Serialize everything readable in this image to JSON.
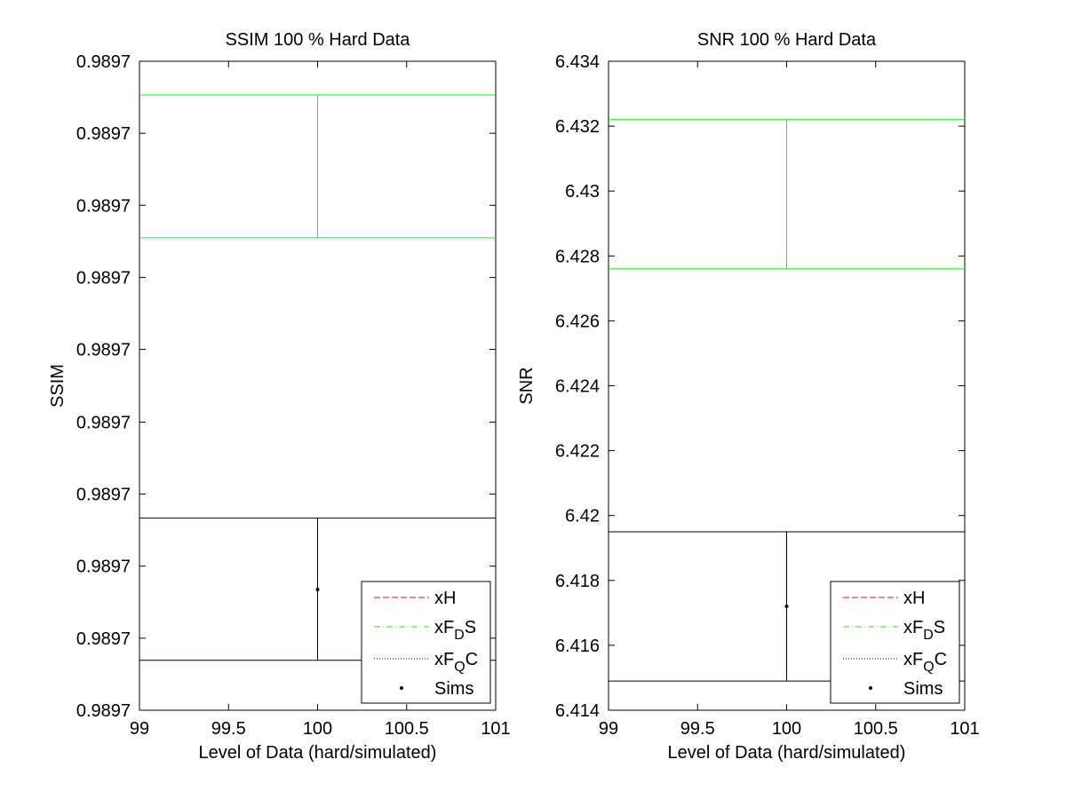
{
  "chart_data": [
    {
      "type": "errorbar",
      "title": "SSIM 100 % Hard Data",
      "xlabel": "Level of Data (hard/simulated)",
      "ylabel": "SSIM",
      "xlim": [
        99,
        101
      ],
      "xticks": [
        99,
        99.5,
        100,
        100.5,
        101
      ],
      "xtick_labels": [
        "99",
        "99.5",
        "100",
        "100.5",
        "101"
      ],
      "ylim": [
        0,
        1
      ],
      "yticks": [
        0,
        0.111,
        0.222,
        0.333,
        0.444,
        0.556,
        0.667,
        0.778,
        0.889,
        1
      ],
      "ytick_labels": [
        "0.9897",
        "0.9897",
        "0.9897",
        "0.9897",
        "0.9897",
        "0.9897",
        "0.9897",
        "0.9897",
        "0.9897",
        "0.9897"
      ],
      "grid": false,
      "legend": {
        "placement": "bottom-right",
        "entries": [
          {
            "label": "xH",
            "sub": "",
            "suffix": "",
            "style": "dashed",
            "color": "#ff0000"
          },
          {
            "label": "xF",
            "sub": "D",
            "suffix": "S",
            "style": "dashdot",
            "color": "#00ff00"
          },
          {
            "label": "xF",
            "sub": "Q",
            "suffix": "C",
            "style": "dotted",
            "color": "#000000"
          },
          {
            "label": "Sims",
            "sub": "",
            "suffix": "",
            "style": "point",
            "color": "#000000"
          }
        ]
      },
      "series": [
        {
          "name": "xF_DS",
          "color": "#00ff00",
          "x": 100,
          "low": 0.728,
          "high": 0.948
        },
        {
          "name": "xF_QC",
          "color": "#000000",
          "x": 100,
          "low": 0.077,
          "high": 0.296
        },
        {
          "name": "Sims",
          "color": "#000000",
          "x": 100,
          "y": 0.186
        }
      ]
    },
    {
      "type": "errorbar",
      "title": "SNR 100 % Hard Data",
      "xlabel": "Level of Data (hard/simulated)",
      "ylabel": "SNR",
      "xlim": [
        99,
        101
      ],
      "xticks": [
        99,
        99.5,
        100,
        100.5,
        101
      ],
      "xtick_labels": [
        "99",
        "99.5",
        "100",
        "100.5",
        "101"
      ],
      "ylim": [
        6.414,
        6.434
      ],
      "yticks": [
        6.414,
        6.416,
        6.418,
        6.42,
        6.422,
        6.424,
        6.426,
        6.428,
        6.43,
        6.432,
        6.434
      ],
      "ytick_labels": [
        "6.414",
        "6.416",
        "6.418",
        "6.42",
        "6.422",
        "6.424",
        "6.426",
        "6.428",
        "6.43",
        "6.432",
        "6.434"
      ],
      "grid": false,
      "legend": {
        "placement": "bottom-right",
        "entries": [
          {
            "label": "xH",
            "sub": "",
            "suffix": "",
            "style": "dashed",
            "color": "#ff0000"
          },
          {
            "label": "xF",
            "sub": "D",
            "suffix": "S",
            "style": "dashdot",
            "color": "#00ff00"
          },
          {
            "label": "xF",
            "sub": "Q",
            "suffix": "C",
            "style": "dotted",
            "color": "#000000"
          },
          {
            "label": "Sims",
            "sub": "",
            "suffix": "",
            "style": "point",
            "color": "#000000"
          }
        ]
      },
      "series": [
        {
          "name": "xF_DS",
          "color": "#00ff00",
          "x": 100,
          "low": 6.4276,
          "high": 6.4322
        },
        {
          "name": "xF_QC",
          "color": "#000000",
          "x": 100,
          "low": 6.4149,
          "high": 6.4195
        },
        {
          "name": "Sims",
          "color": "#000000",
          "x": 100,
          "y": 6.4172
        }
      ]
    }
  ]
}
